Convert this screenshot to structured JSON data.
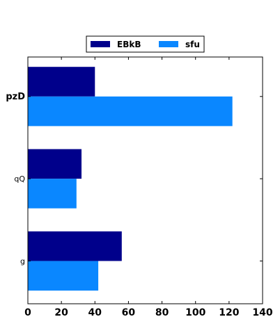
{
  "chart_data": {
    "type": "bar",
    "orientation": "horizontal",
    "categories": [
      "pzD",
      "qQ",
      "g"
    ],
    "series": [
      {
        "name": "EBkB",
        "color": "#00008b",
        "values": [
          40,
          32,
          56
        ]
      },
      {
        "name": "sfu",
        "color": "#0a87ff",
        "values": [
          122,
          29,
          42
        ]
      }
    ],
    "xlim": [
      0,
      140
    ],
    "x_ticks": [
      0,
      20,
      40,
      60,
      80,
      100,
      120,
      140
    ],
    "grid": false,
    "legend_position": "top-center",
    "bold_category": "pzD"
  }
}
